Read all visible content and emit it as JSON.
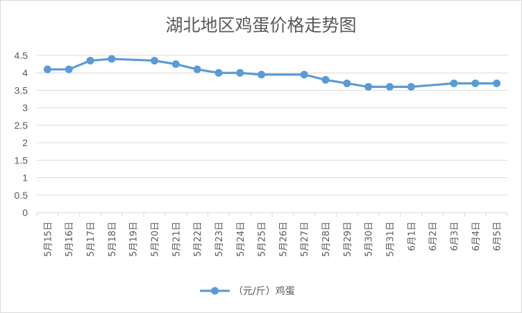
{
  "chart_data": {
    "type": "line",
    "title": "湖北地区鸡蛋价格走势图",
    "xlabel": "",
    "ylabel": "",
    "ylim": [
      0,
      4.5
    ],
    "y_ticks": [
      "0",
      "0.5",
      "1",
      "1.5",
      "2",
      "2.5",
      "3",
      "3.5",
      "4",
      "4.5"
    ],
    "grid": true,
    "legend_position": "bottom",
    "categories": [
      "5月15日",
      "5月16日",
      "5月17日",
      "5月18日",
      "5月19日",
      "5月20日",
      "5月21日",
      "5月22日",
      "5月23日",
      "5月24日",
      "5月25日",
      "5月26日",
      "5月27日",
      "5月28日",
      "5月29日",
      "5月30日",
      "5月31日",
      "6月1日",
      "6月2日",
      "6月3日",
      "6月4日",
      "6月5日"
    ],
    "series": [
      {
        "name": "（元/斤）鸡蛋",
        "color": "#5b9bd5",
        "values": [
          4.1,
          4.1,
          4.35,
          4.4,
          null,
          4.35,
          4.25,
          4.1,
          4.0,
          4.0,
          3.95,
          null,
          3.95,
          3.8,
          3.7,
          3.6,
          3.6,
          3.6,
          null,
          3.7,
          3.7,
          3.7
        ]
      }
    ]
  }
}
